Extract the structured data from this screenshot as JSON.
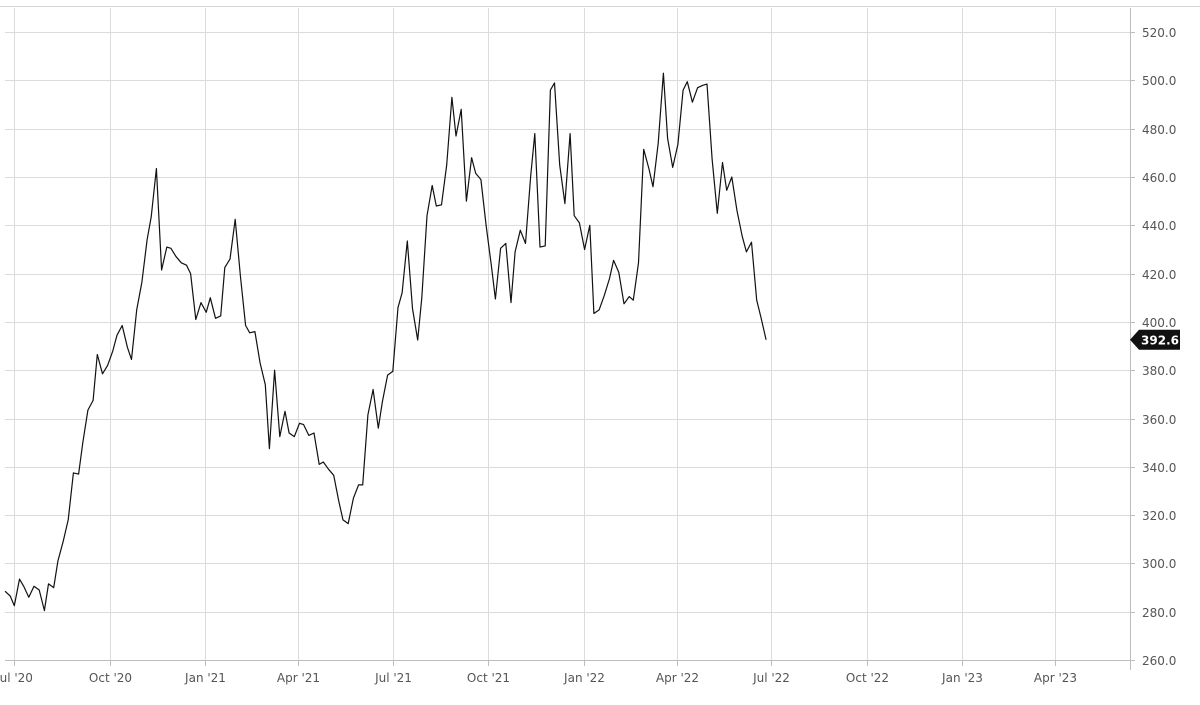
{
  "chart_data": {
    "type": "line",
    "ylim": [
      260,
      530
    ],
    "y_ticks": [
      260,
      280,
      300,
      320,
      340,
      360,
      380,
      400,
      420,
      440,
      460,
      480,
      500,
      520
    ],
    "y_tick_labels": [
      "260.0",
      "280.0",
      "300.0",
      "320.0",
      "340.0",
      "360.0",
      "380.0",
      "400.0",
      "420.0",
      "440.0",
      "460.0",
      "480.0",
      "500.0",
      "520.0"
    ],
    "x_ticks": [
      "2020-07-01",
      "2020-10-01",
      "2021-01-01",
      "2021-04-01",
      "2021-07-01",
      "2021-10-01",
      "2022-01-01",
      "2022-04-01",
      "2022-07-01",
      "2022-10-01",
      "2023-01-01",
      "2023-04-01"
    ],
    "x_tick_labels": [
      "Jul '20",
      "Oct '20",
      "Jan '21",
      "Apr '21",
      "Jul '21",
      "Oct '21",
      "Jan '22",
      "Apr '22",
      "Jul '22",
      "Oct '22",
      "Jan '23",
      "Apr '23"
    ],
    "xlim": [
      "2020-06-22",
      "2023-06-12"
    ],
    "grid": true,
    "last_value_label": "392.6",
    "series": [
      {
        "color": "#111111",
        "points": [
          [
            "2020-06-22",
            288.5
          ],
          [
            "2020-06-27",
            286.5
          ],
          [
            "2020-07-01",
            282.5
          ],
          [
            "2020-07-06",
            293.5
          ],
          [
            "2020-07-10",
            290.5
          ],
          [
            "2020-07-15",
            286.0
          ],
          [
            "2020-07-20",
            290.5
          ],
          [
            "2020-07-25",
            289.0
          ],
          [
            "2020-07-30",
            280.5
          ],
          [
            "2020-08-03",
            291.5
          ],
          [
            "2020-08-08",
            290.0
          ],
          [
            "2020-08-12",
            301.0
          ],
          [
            "2020-08-17",
            309.0
          ],
          [
            "2020-08-22",
            318.0
          ],
          [
            "2020-08-27",
            337.5
          ],
          [
            "2020-09-01",
            337.0
          ],
          [
            "2020-09-05",
            350.0
          ],
          [
            "2020-09-10",
            363.5
          ],
          [
            "2020-09-15",
            367.5
          ],
          [
            "2020-09-19",
            386.5
          ],
          [
            "2020-09-24",
            378.5
          ],
          [
            "2020-09-29",
            382.0
          ],
          [
            "2020-10-04",
            388.0
          ],
          [
            "2020-10-08",
            394.5
          ],
          [
            "2020-10-13",
            398.5
          ],
          [
            "2020-10-18",
            389.5
          ],
          [
            "2020-10-22",
            384.5
          ],
          [
            "2020-10-27",
            405.0
          ],
          [
            "2020-11-01",
            416.5
          ],
          [
            "2020-11-06",
            434.0
          ],
          [
            "2020-11-10",
            443.5
          ],
          [
            "2020-11-15",
            463.5
          ],
          [
            "2020-11-20",
            421.5
          ],
          [
            "2020-11-25",
            431.0
          ],
          [
            "2020-11-29",
            430.5
          ],
          [
            "2020-12-04",
            427.0
          ],
          [
            "2020-12-09",
            424.5
          ],
          [
            "2020-12-14",
            423.5
          ],
          [
            "2020-12-18",
            420.0
          ],
          [
            "2020-12-23",
            401.0
          ],
          [
            "2020-12-28",
            408.0
          ],
          [
            "2021-01-02",
            404.0
          ],
          [
            "2021-01-06",
            410.0
          ],
          [
            "2021-01-11",
            401.5
          ],
          [
            "2021-01-16",
            402.5
          ],
          [
            "2021-01-20",
            422.5
          ],
          [
            "2021-01-25",
            426.0
          ],
          [
            "2021-01-30",
            442.5
          ],
          [
            "2021-02-04",
            419.0
          ],
          [
            "2021-02-09",
            398.5
          ],
          [
            "2021-02-13",
            395.5
          ],
          [
            "2021-02-18",
            396.0
          ],
          [
            "2021-02-23",
            383.0
          ],
          [
            "2021-02-28",
            374.0
          ],
          [
            "2021-03-04",
            347.5
          ],
          [
            "2021-03-09",
            380.0
          ],
          [
            "2021-03-14",
            352.5
          ],
          [
            "2021-03-19",
            363.0
          ],
          [
            "2021-03-23",
            354.0
          ],
          [
            "2021-03-28",
            352.5
          ],
          [
            "2021-04-02",
            358.0
          ],
          [
            "2021-04-06",
            357.5
          ],
          [
            "2021-04-11",
            353.0
          ],
          [
            "2021-04-16",
            354.0
          ],
          [
            "2021-04-21",
            341.0
          ],
          [
            "2021-04-25",
            342.0
          ],
          [
            "2021-04-30",
            339.0
          ],
          [
            "2021-05-05",
            336.5
          ],
          [
            "2021-05-10",
            325.5
          ],
          [
            "2021-05-14",
            318.0
          ],
          [
            "2021-05-19",
            316.5
          ],
          [
            "2021-05-24",
            327.0
          ],
          [
            "2021-05-29",
            332.5
          ],
          [
            "2021-06-02",
            332.5
          ],
          [
            "2021-06-07",
            361.5
          ],
          [
            "2021-06-12",
            372.0
          ],
          [
            "2021-06-17",
            356.0
          ],
          [
            "2021-06-21",
            367.0
          ],
          [
            "2021-06-26",
            378.0
          ],
          [
            "2021-07-01",
            379.5
          ],
          [
            "2021-07-06",
            406.0
          ],
          [
            "2021-07-10",
            412.0
          ],
          [
            "2021-07-15",
            433.5
          ],
          [
            "2021-07-20",
            405.5
          ],
          [
            "2021-07-25",
            392.5
          ],
          [
            "2021-07-29",
            410.0
          ],
          [
            "2021-08-03",
            444.0
          ],
          [
            "2021-08-08",
            456.5
          ],
          [
            "2021-08-12",
            448.0
          ],
          [
            "2021-08-17",
            448.5
          ],
          [
            "2021-08-22",
            465.0
          ],
          [
            "2021-08-27",
            493.0
          ],
          [
            "2021-08-31",
            477.0
          ],
          [
            "2021-09-05",
            488.0
          ],
          [
            "2021-09-10",
            450.0
          ],
          [
            "2021-09-15",
            468.0
          ],
          [
            "2021-09-19",
            461.5
          ],
          [
            "2021-09-24",
            459.0
          ],
          [
            "2021-09-29",
            440.0
          ],
          [
            "2021-10-04",
            423.5
          ],
          [
            "2021-10-08",
            409.5
          ],
          [
            "2021-10-13",
            430.5
          ],
          [
            "2021-10-18",
            432.5
          ],
          [
            "2021-10-23",
            408.0
          ],
          [
            "2021-10-27",
            429.0
          ],
          [
            "2021-11-01",
            438.0
          ],
          [
            "2021-11-06",
            432.5
          ],
          [
            "2021-11-11",
            460.5
          ],
          [
            "2021-11-15",
            478.0
          ],
          [
            "2021-11-20",
            431.0
          ],
          [
            "2021-11-25",
            431.5
          ],
          [
            "2021-11-30",
            496.0
          ],
          [
            "2021-12-04",
            499.0
          ],
          [
            "2021-12-09",
            465.0
          ],
          [
            "2021-12-14",
            449.0
          ],
          [
            "2021-12-19",
            478.0
          ],
          [
            "2021-12-23",
            444.0
          ],
          [
            "2021-12-28",
            441.0
          ],
          [
            "2022-01-02",
            430.0
          ],
          [
            "2022-01-07",
            440.0
          ],
          [
            "2022-01-11",
            403.5
          ],
          [
            "2022-01-16",
            405.0
          ],
          [
            "2022-01-21",
            411.0
          ],
          [
            "2022-01-26",
            418.0
          ],
          [
            "2022-01-30",
            425.5
          ],
          [
            "2022-02-04",
            420.5
          ],
          [
            "2022-02-09",
            407.5
          ],
          [
            "2022-02-14",
            410.5
          ],
          [
            "2022-02-18",
            409.0
          ],
          [
            "2022-02-23",
            424.5
          ],
          [
            "2022-02-28",
            471.5
          ],
          [
            "2022-03-05",
            463.5
          ],
          [
            "2022-03-09",
            456.0
          ],
          [
            "2022-03-14",
            474.0
          ],
          [
            "2022-03-19",
            503.0
          ],
          [
            "2022-03-23",
            476.0
          ],
          [
            "2022-03-28",
            464.0
          ],
          [
            "2022-04-02",
            473.5
          ],
          [
            "2022-04-07",
            496.0
          ],
          [
            "2022-04-11",
            499.5
          ],
          [
            "2022-04-16",
            491.0
          ],
          [
            "2022-04-21",
            497.0
          ],
          [
            "2022-04-26",
            498.0
          ],
          [
            "2022-04-30",
            498.5
          ],
          [
            "2022-05-05",
            467.5
          ],
          [
            "2022-05-10",
            445.0
          ],
          [
            "2022-05-15",
            466.0
          ],
          [
            "2022-05-19",
            454.5
          ],
          [
            "2022-05-24",
            460.0
          ],
          [
            "2022-05-29",
            446.0
          ],
          [
            "2022-06-03",
            435.5
          ],
          [
            "2022-06-07",
            429.0
          ],
          [
            "2022-06-12",
            433.0
          ],
          [
            "2022-06-17",
            409.0
          ],
          [
            "2022-06-21",
            402.0
          ],
          [
            "2022-06-26",
            392.6
          ]
        ]
      }
    ]
  }
}
